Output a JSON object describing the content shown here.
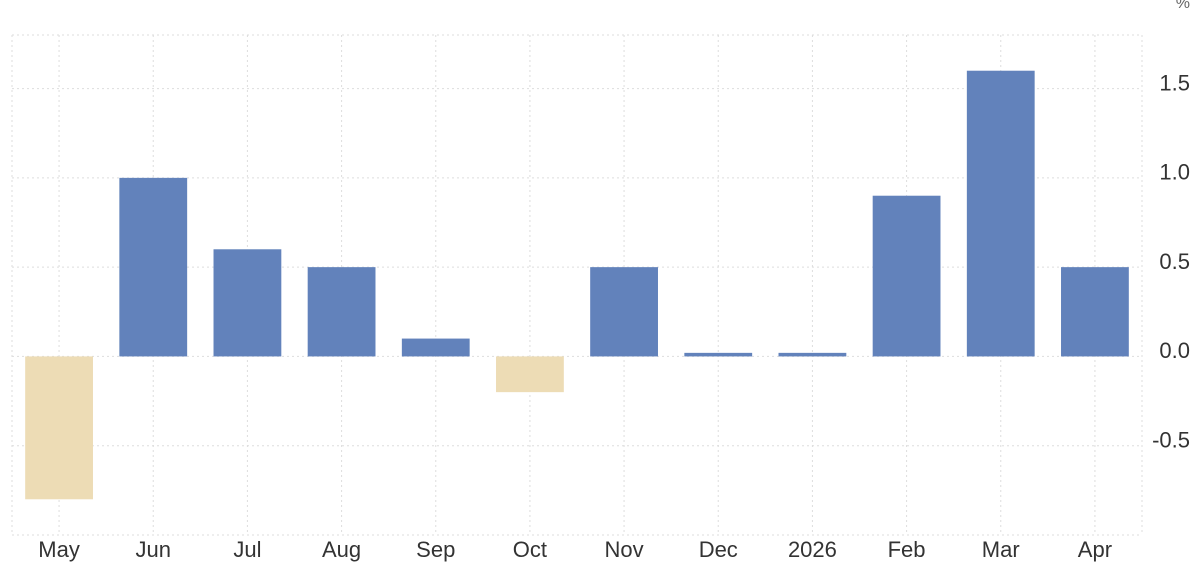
{
  "chart_data": {
    "type": "bar",
    "y_unit": "%",
    "categories": [
      "May",
      "Jun",
      "Jul",
      "Aug",
      "Sep",
      "Oct",
      "Nov",
      "Dec",
      "2026",
      "Feb",
      "Mar",
      "Apr"
    ],
    "values": [
      -0.8,
      1.0,
      0.6,
      0.5,
      0.1,
      -0.2,
      0.5,
      0.02,
      0.02,
      0.9,
      1.6,
      0.5
    ],
    "positive_color": "#6282bb",
    "negative_color": "#eddcb5",
    "ylim": [
      -1.0,
      1.8
    ],
    "yticks": [
      -0.5,
      {
        "value": 0,
        "label": "0.0"
      },
      0.5,
      {
        "value": 1,
        "label": "1.0"
      },
      1.5
    ],
    "grid": true
  }
}
